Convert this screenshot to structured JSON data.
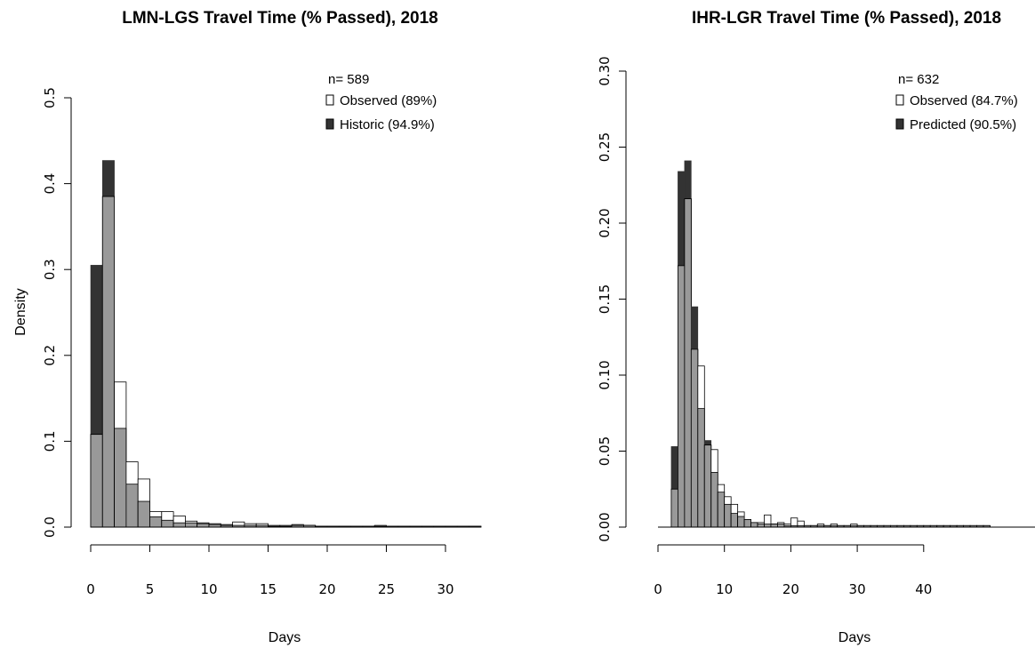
{
  "colors": {
    "observed": "#ffffff",
    "comparison": "#333333",
    "overlap": "#999999",
    "axis": "#000000"
  },
  "chart_data": [
    {
      "type": "bar",
      "title": "LMN-LGS Travel Time (% Passed), 2018",
      "xlabel": "Days",
      "ylabel": "Density",
      "xlim": [
        0,
        33
      ],
      "ylim": [
        0,
        0.5
      ],
      "x_ticks": [
        "0",
        "5",
        "10",
        "15",
        "20",
        "25",
        "30"
      ],
      "y_ticks": [
        "0.0",
        "0.1",
        "0.2",
        "0.3",
        "0.4",
        "0.5"
      ],
      "bin_start": 0,
      "bin_width": 1,
      "legend": {
        "n_label": "n= 589",
        "items": [
          {
            "label": "Observed (89%)",
            "role": "observed"
          },
          {
            "label": "Historic (94.9%)",
            "role": "comparison"
          }
        ]
      },
      "series": [
        {
          "name": "Observed (89%)",
          "values": [
            0.108,
            0.385,
            0.169,
            0.076,
            0.056,
            0.018,
            0.018,
            0.013,
            0.007,
            0.005,
            0.004,
            0.003,
            0.006,
            0.004,
            0.004,
            0.002,
            0.002,
            0.003,
            0.002,
            0.001,
            0.001,
            0.001,
            0.001,
            0.001,
            0.002,
            0.001,
            0.001,
            0.001,
            0.001,
            0.001,
            0.001,
            0.001,
            0.001
          ]
        },
        {
          "name": "Historic (94.9%)",
          "values": [
            0.305,
            0.427,
            0.115,
            0.05,
            0.03,
            0.012,
            0.008,
            0.005,
            0.005,
            0.004,
            0.003,
            0.002,
            0.002,
            0.002,
            0.002,
            0.001,
            0.001,
            0.002,
            0.002,
            0.001,
            0.001,
            0.001,
            0.001,
            0.001,
            0.001,
            0.001,
            0.001,
            0.001,
            0.001,
            0.001,
            0.001,
            0.001,
            0.001
          ]
        }
      ]
    },
    {
      "type": "bar",
      "title": "IHR-LGR Travel Time (% Passed), 2018",
      "xlabel": "Days",
      "ylabel": "Density",
      "xlim": [
        0,
        50
      ],
      "ylim": [
        0,
        0.3
      ],
      "x_ticks": [
        "0",
        "10",
        "20",
        "30",
        "40"
      ],
      "y_ticks": [
        "0.00",
        "0.05",
        "0.10",
        "0.15",
        "0.20",
        "0.25",
        "0.30"
      ],
      "bin_start": 0,
      "bin_width": 1,
      "legend": {
        "n_label": "n= 632",
        "items": [
          {
            "label": "Observed (84.7%)",
            "role": "observed"
          },
          {
            "label": "Predicted (90.5%)",
            "role": "comparison"
          }
        ]
      },
      "series": [
        {
          "name": "Observed (84.7%)",
          "values": [
            0,
            0,
            0.025,
            0.172,
            0.216,
            0.117,
            0.106,
            0.054,
            0.051,
            0.028,
            0.02,
            0.015,
            0.01,
            0.005,
            0.003,
            0.003,
            0.008,
            0.002,
            0.003,
            0.002,
            0.006,
            0.004,
            0.001,
            0.001,
            0.002,
            0.001,
            0.002,
            0.001,
            0.001,
            0.002,
            0.001,
            0.001,
            0.001,
            0.001,
            0.001,
            0.001,
            0.001,
            0.001,
            0.001,
            0.001,
            0.001,
            0.001,
            0.001,
            0.001,
            0.001,
            0.001,
            0.001,
            0.001,
            0.001,
            0.001
          ]
        },
        {
          "name": "Predicted (90.5%)",
          "values": [
            0,
            0,
            0.053,
            0.234,
            0.241,
            0.145,
            0.078,
            0.057,
            0.036,
            0.023,
            0.015,
            0.009,
            0.007,
            0.005,
            0.003,
            0.002,
            0.002,
            0.002,
            0.002,
            0.001,
            0.001,
            0.001,
            0.001,
            0.001,
            0.001,
            0.001,
            0.001,
            0.001,
            0.001,
            0.001,
            0.001,
            0.001,
            0.001,
            0.001,
            0.001,
            0.001,
            0.001,
            0.001,
            0.001,
            0.001,
            0.001,
            0.001,
            0.001,
            0.001,
            0.001,
            0.001,
            0.001,
            0.001,
            0.001,
            0.001
          ]
        }
      ]
    }
  ]
}
